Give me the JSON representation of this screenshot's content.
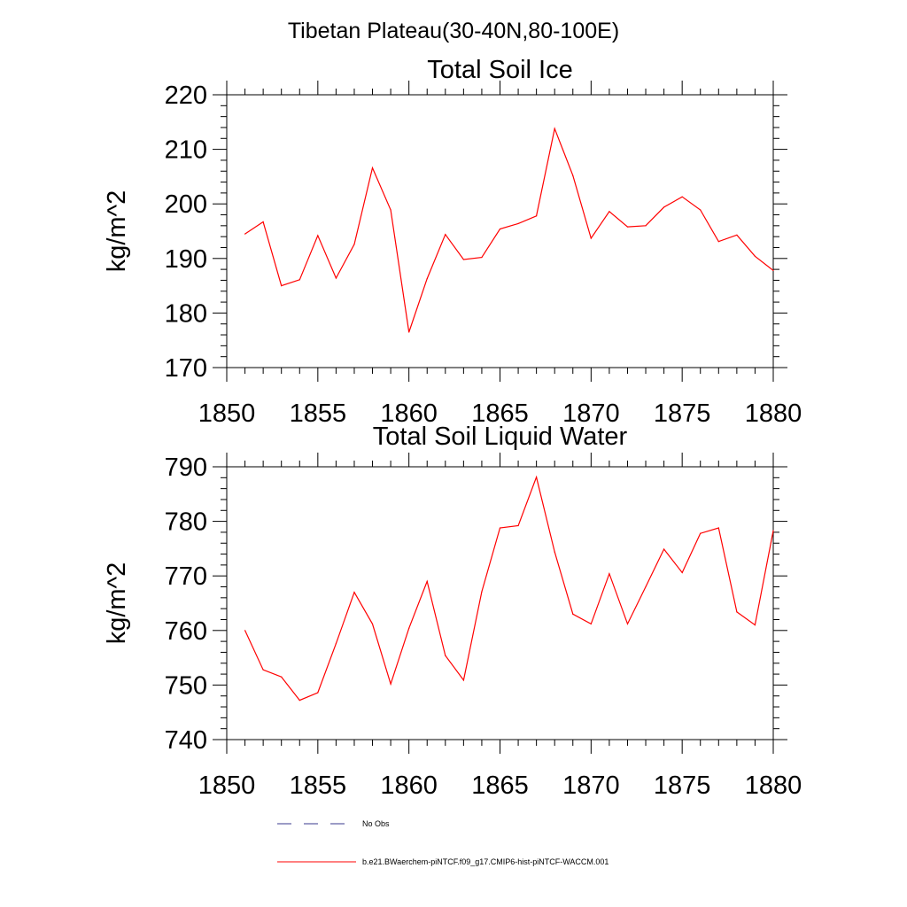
{
  "figure": {
    "suptitle": "Tibetan Plateau(30-40N,80-100E)"
  },
  "chart_data": [
    {
      "type": "line",
      "title": "Total Soil Ice",
      "xlabel": "",
      "ylabel": "kg/m^2",
      "xlim": [
        1850,
        1880
      ],
      "ylim": [
        170,
        220
      ],
      "xticks": [
        1850,
        1855,
        1860,
        1865,
        1870,
        1875,
        1880
      ],
      "yticks": [
        170,
        180,
        190,
        200,
        210,
        220
      ],
      "grid": false,
      "series": [
        {
          "name": "b.e21.BWaerchem-piNTCF.f09_g17.CMIP6-hist-piNTCF-WACCM.001",
          "color": "#ff0000",
          "x": [
            1851,
            1852,
            1853,
            1854,
            1855,
            1856,
            1857,
            1858,
            1859,
            1860,
            1861,
            1862,
            1863,
            1864,
            1865,
            1866,
            1867,
            1868,
            1869,
            1870,
            1871,
            1872,
            1873,
            1874,
            1875,
            1876,
            1877,
            1878,
            1879,
            1880
          ],
          "values": [
            194.5,
            196.7,
            185.0,
            186.1,
            194.2,
            186.4,
            192.6,
            206.6,
            198.9,
            176.5,
            186.3,
            194.4,
            189.8,
            190.2,
            195.4,
            196.4,
            197.8,
            213.8,
            205.2,
            193.7,
            198.6,
            195.8,
            196.0,
            199.4,
            201.3,
            198.9,
            193.1,
            194.3,
            190.4,
            187.8
          ]
        }
      ]
    },
    {
      "type": "line",
      "title": "Total Soil Liquid Water",
      "xlabel": "",
      "ylabel": "kg/m^2",
      "xlim": [
        1850,
        1880
      ],
      "ylim": [
        740,
        790
      ],
      "xticks": [
        1850,
        1855,
        1860,
        1865,
        1870,
        1875,
        1880
      ],
      "yticks": [
        740,
        750,
        760,
        770,
        780,
        790
      ],
      "grid": false,
      "series": [
        {
          "name": "b.e21.BWaerchem-piNTCF.f09_g17.CMIP6-hist-piNTCF-WACCM.001",
          "color": "#ff0000",
          "x": [
            1851,
            1852,
            1853,
            1854,
            1855,
            1856,
            1857,
            1858,
            1859,
            1860,
            1861,
            1862,
            1863,
            1864,
            1865,
            1866,
            1867,
            1868,
            1869,
            1870,
            1871,
            1872,
            1873,
            1874,
            1875,
            1876,
            1877,
            1878,
            1879,
            1880
          ],
          "values": [
            760.0,
            752.8,
            751.5,
            747.2,
            748.6,
            757.6,
            767.0,
            761.2,
            750.2,
            760.4,
            769.0,
            755.4,
            750.9,
            767.1,
            778.8,
            779.2,
            788.1,
            774.4,
            763.0,
            761.2,
            770.4,
            761.2,
            768.0,
            774.9,
            770.6,
            777.8,
            778.8,
            763.4,
            761.0,
            778.3
          ]
        }
      ]
    }
  ],
  "legend": {
    "placement": "bottom",
    "entries": [
      {
        "label": "No Obs",
        "color": "#3a3a8c",
        "style": "dashed"
      },
      {
        "label": "b.e21.BWaerchem-piNTCF.f09_g17.CMIP6-hist-piNTCF-WACCM.001",
        "color": "#ff0000",
        "style": "solid"
      }
    ]
  }
}
